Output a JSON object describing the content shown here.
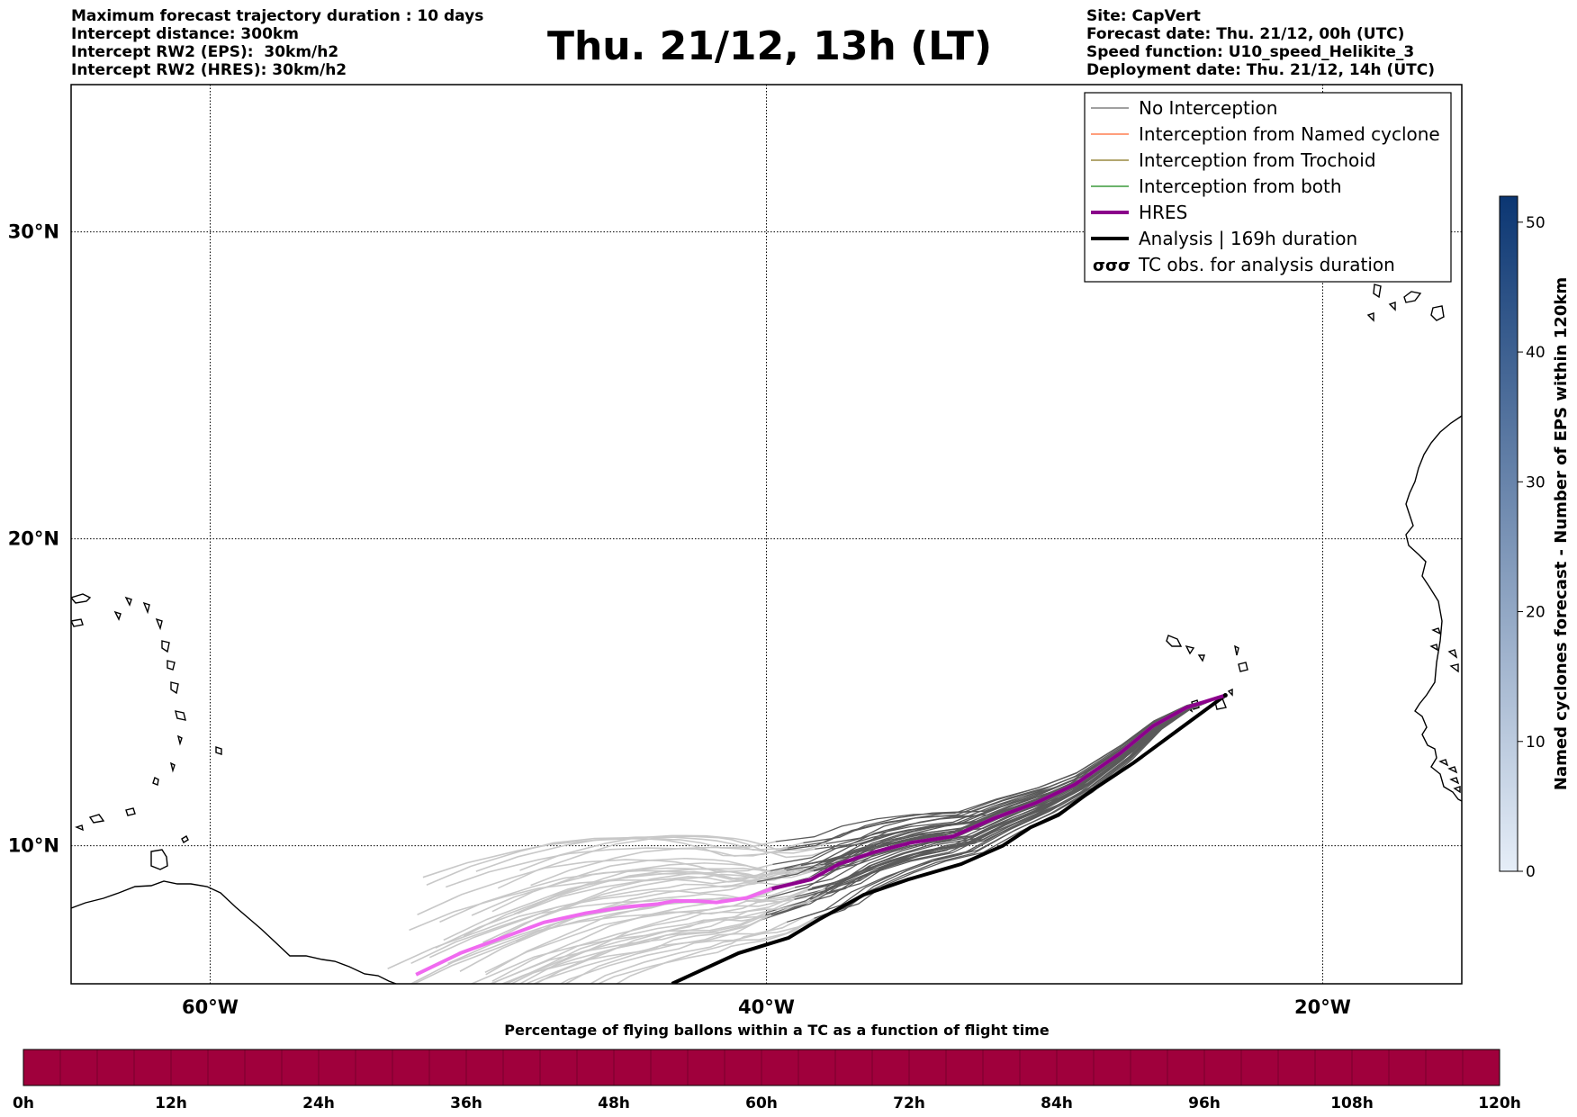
{
  "header": {
    "title": "Thu. 21/12, 13h (LT)",
    "left_lines": [
      "Maximum forecast trajectory duration : 10 days",
      "Intercept distance: 300km",
      "Intercept RW2 (EPS):  30km/h2",
      "Intercept RW2 (HRES): 30km/h2"
    ],
    "right_lines": [
      "Site: CapVert",
      "Forecast date: Thu. 21/12, 00h (UTC)",
      "Speed function: U10_speed_Helikite_3",
      "Deployment date: Thu. 21/12, 14h (UTC)"
    ]
  },
  "map": {
    "lon_range": [
      -65,
      -15
    ],
    "lat_range": [
      5.5,
      34.8
    ],
    "lat_ticks": [
      {
        "value": 30,
        "label": "30°N"
      },
      {
        "value": 20,
        "label": "20°N"
      },
      {
        "value": 10,
        "label": "10°N"
      }
    ],
    "lon_ticks": [
      {
        "value": -60,
        "label": "60°W"
      },
      {
        "value": -40,
        "label": "40°W"
      },
      {
        "value": -20,
        "label": "20°W"
      }
    ],
    "hres_track": [
      [
        -52.6,
        5.8
      ],
      [
        -51,
        6.5
      ],
      [
        -49.2,
        7.1
      ],
      [
        -48,
        7.5
      ],
      [
        -46.5,
        7.8
      ],
      [
        -45.1,
        8.0
      ],
      [
        -43.9,
        8.1
      ],
      [
        -43.3,
        8.2
      ],
      [
        -42.5,
        8.2
      ],
      [
        -41.8,
        8.15
      ],
      [
        -40.7,
        8.3
      ],
      [
        -39.8,
        8.6
      ],
      [
        -38.4,
        8.9
      ],
      [
        -37.4,
        9.4
      ],
      [
        -36.1,
        9.8
      ],
      [
        -34.8,
        10.1
      ],
      [
        -33.3,
        10.3
      ],
      [
        -31.8,
        10.9
      ],
      [
        -30.3,
        11.4
      ],
      [
        -28.9,
        12.0
      ],
      [
        -27.3,
        13.0
      ],
      [
        -26.1,
        13.9
      ],
      [
        -24.9,
        14.5
      ],
      [
        -23.5,
        14.9
      ]
    ],
    "analysis_track": [
      [
        -43.4,
        5.5
      ],
      [
        -42.2,
        6.0
      ],
      [
        -41.0,
        6.5
      ],
      [
        -39.2,
        7.0
      ],
      [
        -38.1,
        7.6
      ],
      [
        -36.5,
        8.4
      ],
      [
        -34.9,
        8.9
      ],
      [
        -33.0,
        9.4
      ],
      [
        -31.5,
        10.0
      ],
      [
        -30.5,
        10.6
      ],
      [
        -29.5,
        11.0
      ],
      [
        -28.3,
        11.8
      ],
      [
        -26.8,
        12.7
      ],
      [
        -25.3,
        13.7
      ],
      [
        -23.5,
        14.9
      ]
    ],
    "release_point": [
      -23.5,
      14.9
    ],
    "colors": {
      "no_interception": "#808080",
      "named": "#ff7f50",
      "trochoid": "#9a8a40",
      "both": "#3a9a3a",
      "hres": "#8b008b",
      "hres_early": "#f06af0",
      "analysis": "#000000",
      "ensemble_light": "#c8c8c8",
      "ensemble_dark": "#5a5a5a"
    }
  },
  "legend": [
    {
      "label": "No Interception",
      "style": "no_interception"
    },
    {
      "label": "Interception from Named cyclone",
      "style": "named"
    },
    {
      "label": "Interception from Trochoid",
      "style": "trochoid"
    },
    {
      "label": "Interception from both",
      "style": "both"
    },
    {
      "label": "HRES",
      "style": "hres"
    },
    {
      "label": "Analysis | 169h duration",
      "style": "analysis"
    },
    {
      "label": "TC obs. for analysis duration",
      "style": "tc_obs"
    }
  ],
  "colorbar_right": {
    "label": "Named cyclones forecast - Number of EPS within 120km",
    "ticks": [
      "0",
      "10",
      "20",
      "30",
      "40",
      "50"
    ],
    "tick_values": [
      0,
      10,
      20,
      30,
      40,
      50
    ],
    "max": 52,
    "color_low": "#e6eef8",
    "color_high": "#0b3672"
  },
  "colorbar_bottom": {
    "label": "Percentage of flying ballons within a TC as a function of flight time",
    "ticks": [
      "0h",
      "12h",
      "24h",
      "36h",
      "48h",
      "60h",
      "72h",
      "84h",
      "96h",
      "108h",
      "120h"
    ],
    "fill_color": "#a0003c"
  }
}
